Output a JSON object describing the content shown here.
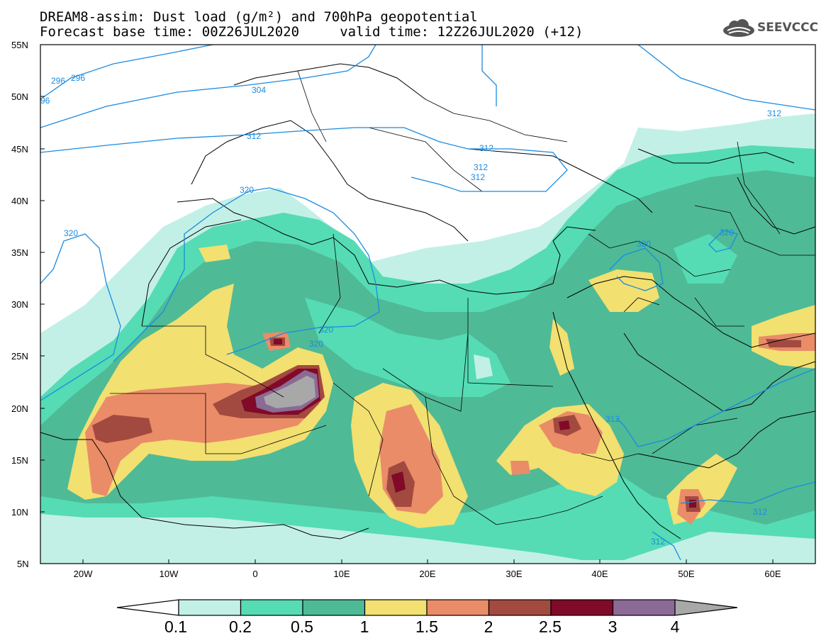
{
  "title": {
    "line1": "DREAM8-assim: Dust load (g/m²) and 700hPa geopotential",
    "line2": "Forecast base time: 00Z26JUL2020     valid time: 12Z26JUL2020 (+12)"
  },
  "logo": {
    "text": "SEEVCCC",
    "icon": "cloud-logo-icon"
  },
  "axes": {
    "lat_labels": [
      "55N",
      "50N",
      "45N",
      "40N",
      "35N",
      "30N",
      "25N",
      "20N",
      "15N",
      "10N",
      "5N"
    ],
    "lon_labels": [
      "20W",
      "10W",
      "0",
      "10E",
      "20E",
      "30E",
      "40E",
      "50E",
      "60E"
    ]
  },
  "contour_labels": [
    "296",
    "296",
    "96",
    "304",
    "312",
    "312",
    "312",
    "312",
    "320",
    "320",
    "320",
    "320",
    "320",
    "320",
    "312",
    "312",
    "312",
    "312"
  ],
  "colorbar": {
    "labels": [
      "0.1",
      "0.2",
      "0.5",
      "1",
      "1.5",
      "2",
      "2.5",
      "3",
      "4"
    ],
    "colors": [
      "#c2f0e6",
      "#55dcb4",
      "#4fba96",
      "#f2e070",
      "#ea8c68",
      "#a34a40",
      "#800a28",
      "#8c6a96",
      "#a8a8a8"
    ]
  },
  "colors": {
    "contour": "#1a8be0",
    "border": "#000000"
  }
}
